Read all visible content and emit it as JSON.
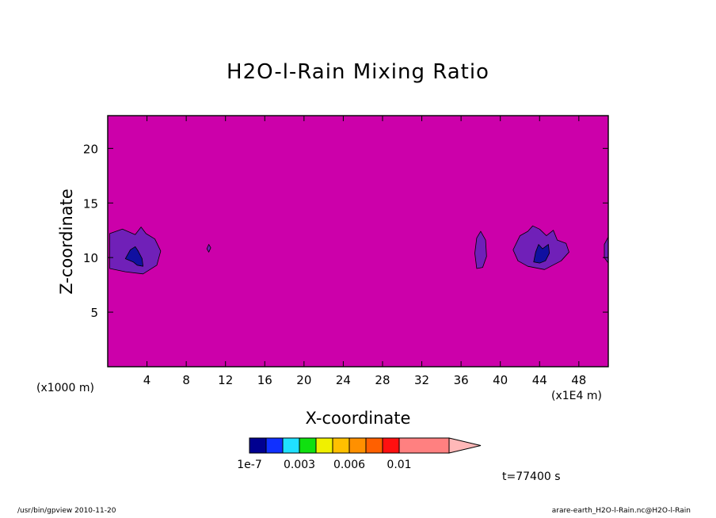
{
  "chart_data": {
    "type": "heatmap",
    "title": "H2O-l-Rain Mixing Ratio",
    "xlabel": "X-coordinate",
    "ylabel": "Z-coordinate",
    "x_unit_left": "(x1000 m)",
    "x_unit_right": "(x1E4 m)",
    "xlim": [
      0,
      51
    ],
    "ylim": [
      0,
      23
    ],
    "xticks": [
      4,
      8,
      12,
      16,
      20,
      24,
      28,
      32,
      36,
      40,
      44,
      48
    ],
    "yticks": [
      5,
      10,
      15,
      20
    ],
    "background_color": "#cc00aa",
    "contour_regions": [
      {
        "name": "left-edge-cell",
        "level": 1,
        "color": "#7020b8",
        "points": [
          [
            0.2,
            9.0
          ],
          [
            0.2,
            12.2
          ],
          [
            1.5,
            12.6
          ],
          [
            2.8,
            12.1
          ],
          [
            3.4,
            12.8
          ],
          [
            3.9,
            12.2
          ],
          [
            4.8,
            11.7
          ],
          [
            5.4,
            10.6
          ],
          [
            5.0,
            9.3
          ],
          [
            3.6,
            8.5
          ],
          [
            1.8,
            8.7
          ]
        ]
      },
      {
        "name": "left-edge-core",
        "level": 0,
        "color": "#1010a0",
        "points": [
          [
            1.8,
            9.9
          ],
          [
            2.3,
            10.7
          ],
          [
            2.8,
            11.0
          ],
          [
            3.1,
            10.6
          ],
          [
            3.5,
            9.9
          ],
          [
            3.6,
            9.2
          ],
          [
            3.0,
            9.3
          ],
          [
            2.6,
            9.6
          ]
        ]
      },
      {
        "name": "small-cell-x10",
        "level": 1,
        "color": "#7020b8",
        "points": [
          [
            10.1,
            10.8
          ],
          [
            10.3,
            11.2
          ],
          [
            10.5,
            10.9
          ],
          [
            10.3,
            10.5
          ]
        ]
      },
      {
        "name": "narrow-cell-x38",
        "level": 1,
        "color": "#7020b8",
        "points": [
          [
            37.6,
            9.0
          ],
          [
            37.4,
            10.4
          ],
          [
            37.6,
            11.8
          ],
          [
            38.0,
            12.4
          ],
          [
            38.5,
            11.6
          ],
          [
            38.6,
            10.1
          ],
          [
            38.2,
            9.1
          ]
        ]
      },
      {
        "name": "right-cell-x44",
        "level": 1,
        "color": "#7020b8",
        "points": [
          [
            41.3,
            10.7
          ],
          [
            42.0,
            12.0
          ],
          [
            42.8,
            12.4
          ],
          [
            43.3,
            12.9
          ],
          [
            44.0,
            12.6
          ],
          [
            44.7,
            12.0
          ],
          [
            45.4,
            12.5
          ],
          [
            45.8,
            11.6
          ],
          [
            46.7,
            11.3
          ],
          [
            47.0,
            10.5
          ],
          [
            46.2,
            9.7
          ],
          [
            44.5,
            8.9
          ],
          [
            42.8,
            9.2
          ],
          [
            41.8,
            9.7
          ]
        ]
      },
      {
        "name": "right-cell-core",
        "level": 0,
        "color": "#1010a0",
        "points": [
          [
            43.4,
            9.6
          ],
          [
            43.6,
            10.5
          ],
          [
            43.9,
            11.2
          ],
          [
            44.3,
            10.8
          ],
          [
            44.9,
            11.2
          ],
          [
            45.0,
            10.4
          ],
          [
            44.6,
            9.7
          ],
          [
            44.0,
            9.5
          ]
        ]
      },
      {
        "name": "right-edge-cell",
        "level": 1,
        "color": "#7020b8",
        "points": [
          [
            50.6,
            10.0
          ],
          [
            50.6,
            11.2
          ],
          [
            51.0,
            11.9
          ],
          [
            51.0,
            9.5
          ]
        ]
      }
    ],
    "colorbar": {
      "colors": [
        "#000090",
        "#1030ff",
        "#20e0ff",
        "#10e010",
        "#f0f000",
        "#ffc000",
        "#ff9000",
        "#ff6000",
        "#ff1010",
        "#ff8080"
      ],
      "extend_color": "#ffb8b8",
      "labels": [
        "1e-7",
        "0.003",
        "0.006",
        "0.01"
      ]
    }
  },
  "time_label": "t=77400 s",
  "footer": {
    "left": "/usr/bin/gpview   2010-11-20",
    "right": "arare-earth_H2O-l-Rain.nc@H2O-l-Rain"
  }
}
